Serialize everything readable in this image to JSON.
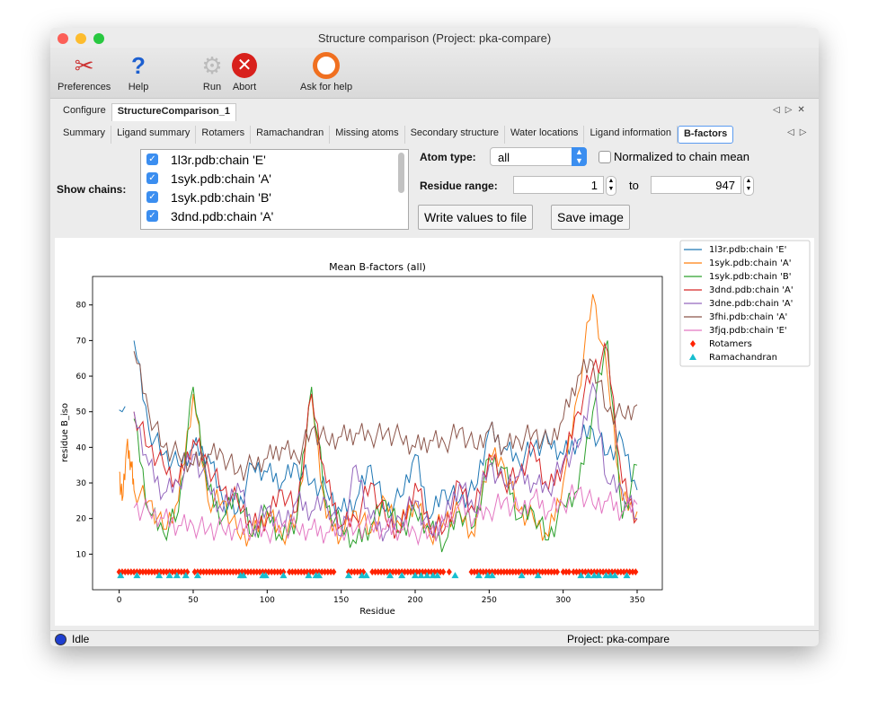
{
  "window": {
    "title": "Structure comparison (Project: pka-compare)"
  },
  "toolbar": [
    {
      "label": "Preferences",
      "icon": "tools-icon"
    },
    {
      "label": "Help",
      "icon": "question-icon"
    },
    {
      "label": "Run",
      "icon": "gear-icon"
    },
    {
      "label": "Abort",
      "icon": "stop-icon"
    },
    {
      "label": "Ask for help",
      "icon": "lifebuoy-icon"
    }
  ],
  "top_tabs": [
    "Configure",
    "StructureComparison_1"
  ],
  "sub_tabs": [
    "Summary",
    "Ligand summary",
    "Rotamers",
    "Ramachandran",
    "Missing atoms",
    "Secondary structure",
    "Water locations",
    "Ligand information",
    "B-factors"
  ],
  "controls": {
    "show_chains_label": "Show chains:",
    "chains": [
      "1l3r.pdb:chain 'E'",
      "1syk.pdb:chain 'A'",
      "1syk.pdb:chain 'B'",
      "3dnd.pdb:chain 'A'"
    ],
    "atom_type_label": "Atom type:",
    "atom_type": "all",
    "normalized_label": "Normalized to chain mean",
    "normalized_checked": false,
    "residue_range_label": "Residue range:",
    "range_from": "1",
    "to_label": "to",
    "range_to": "947",
    "write_button": "Write values to file",
    "save_button": "Save image"
  },
  "status": {
    "text": "Idle",
    "project": "Project: pka-compare"
  },
  "chart_data": {
    "type": "line",
    "title": "Mean B-factors (all)",
    "xlabel": "Residue",
    "ylabel": "residue B_iso",
    "xlim": [
      -18,
      367
    ],
    "ylim": [
      0,
      88
    ],
    "xticks": [
      0,
      50,
      100,
      150,
      200,
      250,
      300,
      350
    ],
    "yticks": [
      10,
      20,
      30,
      40,
      50,
      60,
      70,
      80
    ],
    "grid": false,
    "legend": "outside-top-right",
    "x": [
      10,
      20,
      30,
      40,
      50,
      60,
      70,
      80,
      90,
      100,
      110,
      120,
      130,
      140,
      150,
      160,
      170,
      180,
      190,
      200,
      210,
      220,
      230,
      240,
      250,
      260,
      270,
      280,
      290,
      300,
      310,
      320,
      330,
      340,
      350
    ],
    "series": [
      {
        "name": "1l3r.pdb:chain 'E'",
        "color": "#1f77b4",
        "values": [
          70,
          45,
          38,
          35,
          40,
          38,
          25,
          22,
          35,
          33,
          30,
          35,
          30,
          28,
          22,
          25,
          35,
          22,
          26,
          38,
          20,
          28,
          25,
          28,
          45,
          40,
          36,
          40,
          42,
          38,
          42,
          45,
          38,
          42,
          28
        ],
        "extra": [
          [
            0,
            50.5
          ],
          [
            2,
            50
          ],
          [
            4,
            51.5
          ]
        ]
      },
      {
        "name": "1syk.pdb:chain 'A'",
        "color": "#ff7f0e",
        "values": [
          28,
          25,
          17,
          25,
          55,
          25,
          25,
          16,
          15,
          22,
          15,
          20,
          55,
          20,
          15,
          22,
          16,
          25,
          18,
          25,
          15,
          20,
          22,
          15,
          38,
          35,
          22,
          20,
          15,
          30,
          55,
          83,
          60,
          25,
          22
        ],
        "extra": [
          [
            0,
            33
          ],
          [
            2,
            25
          ],
          [
            5,
            40
          ],
          [
            8,
            36
          ]
        ]
      },
      {
        "name": "1syk.pdb:chain 'B'",
        "color": "#2ca02c",
        "values": [
          48,
          22,
          16,
          22,
          57,
          28,
          20,
          27,
          15,
          22,
          14,
          20,
          57,
          23,
          18,
          13,
          18,
          25,
          16,
          22,
          17,
          13,
          22,
          18,
          37,
          34,
          20,
          22,
          14,
          24,
          28,
          50,
          70,
          20,
          35
        ]
      },
      {
        "name": "3dnd.pdb:chain 'A'",
        "color": "#d62728",
        "values": [
          50,
          40,
          35,
          30,
          42,
          35,
          28,
          25,
          18,
          20,
          28,
          22,
          55,
          30,
          18,
          20,
          30,
          20,
          16,
          30,
          18,
          17,
          30,
          22,
          38,
          30,
          32,
          40,
          28,
          35,
          50,
          62,
          67,
          30,
          20
        ]
      },
      {
        "name": "3dne.pdb:chain 'A'",
        "color": "#9467bd",
        "values": [
          50,
          35,
          27,
          30,
          38,
          30,
          22,
          30,
          17,
          23,
          18,
          25,
          22,
          25,
          15,
          35,
          20,
          16,
          20,
          25,
          16,
          20,
          30,
          22,
          35,
          30,
          32,
          30,
          28,
          36,
          40,
          58,
          30,
          28,
          20
        ]
      },
      {
        "name": "3fhi.pdb:chain 'A'",
        "color": "#8c564b",
        "values": [
          67,
          50,
          40,
          38,
          35,
          38,
          38,
          33,
          35,
          37,
          40,
          37,
          45,
          42,
          43,
          44,
          43,
          44,
          43,
          40,
          42,
          41,
          45,
          40,
          45,
          40,
          42,
          44,
          41,
          48,
          60,
          64,
          50,
          49,
          52
        ]
      },
      {
        "name": "3fjq.pdb:chain 'E'",
        "color": "#e377c2",
        "values": [
          23,
          22,
          20,
          18,
          18,
          17,
          17,
          17,
          17,
          16,
          18,
          17,
          17,
          16,
          17,
          17,
          18,
          17,
          17,
          16,
          16,
          18,
          24,
          20,
          22,
          25,
          22,
          26,
          22,
          24,
          28,
          24,
          25,
          22,
          24
        ]
      }
    ],
    "markers": [
      {
        "name": "Rotamers",
        "color": "#ff2200",
        "shape": "diamond",
        "y": 5,
        "ranges": [
          [
            0,
            47
          ],
          [
            51,
            112
          ],
          [
            115,
            146
          ],
          [
            155,
            166
          ],
          [
            171,
            219
          ],
          [
            223,
            223
          ],
          [
            238,
            296
          ],
          [
            300,
            305
          ],
          [
            307,
            350
          ]
        ]
      },
      {
        "name": "Ramachandran",
        "color": "#17becf",
        "shape": "triangle",
        "y": 4,
        "residues": [
          1,
          12,
          27,
          34,
          39,
          45,
          53,
          82,
          84,
          97,
          99,
          111,
          128,
          133,
          135,
          155,
          164,
          167,
          183,
          191,
          200,
          204,
          208,
          212,
          215,
          227,
          243,
          249,
          252,
          272,
          283,
          312,
          317,
          321,
          324,
          329,
          332,
          335,
          343
        ]
      }
    ]
  }
}
